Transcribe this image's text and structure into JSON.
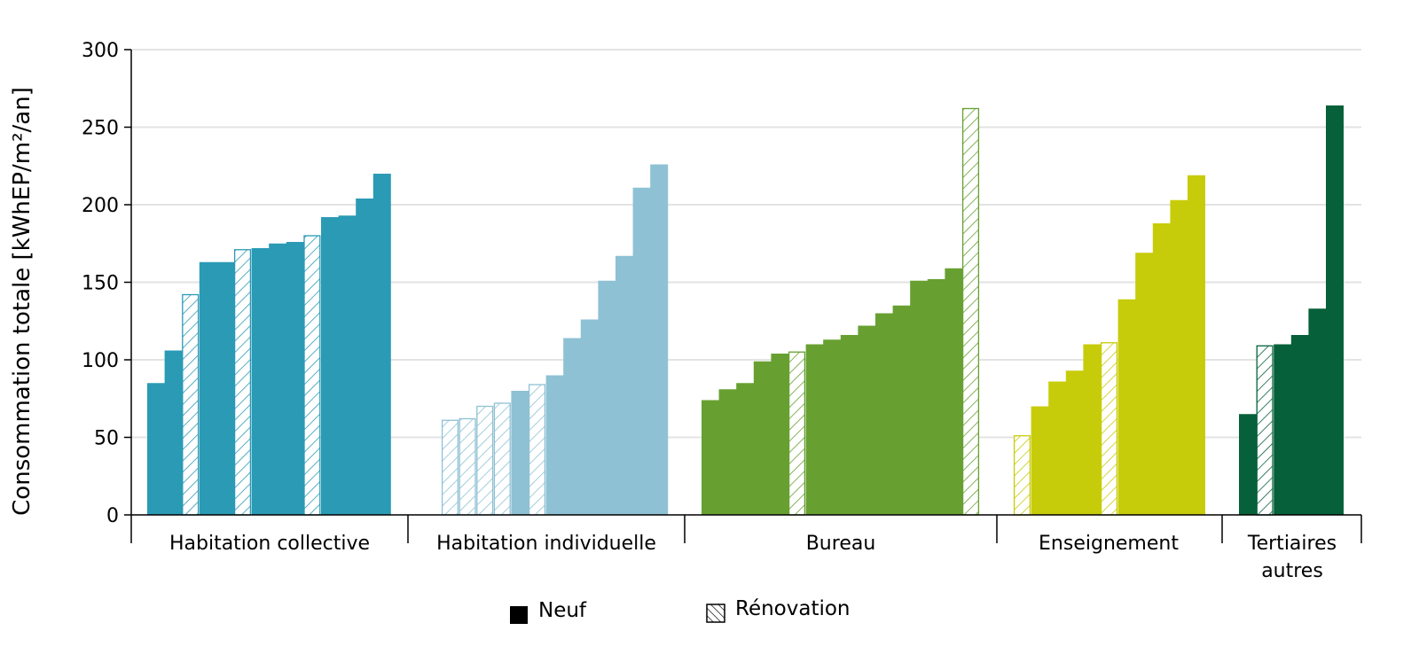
{
  "chart_data": {
    "type": "bar",
    "ylabel": "Consommation totale [kWhEP/m²/an]",
    "ylim": [
      0,
      300
    ],
    "yticks": [
      0,
      50,
      100,
      150,
      200,
      250,
      300
    ],
    "grid": true,
    "legend_position": "bottom",
    "legend": [
      {
        "label": "Neuf",
        "pattern": "solid"
      },
      {
        "label": "Rénovation",
        "pattern": "hatched"
      }
    ],
    "groups": [
      {
        "name": "Habitation collective",
        "color": "#2b9ab5",
        "bars": [
          {
            "value": 85,
            "type": "Neuf"
          },
          {
            "value": 106,
            "type": "Neuf"
          },
          {
            "value": 142,
            "type": "Rénovation"
          },
          {
            "value": 163,
            "type": "Neuf"
          },
          {
            "value": 163,
            "type": "Neuf"
          },
          {
            "value": 171,
            "type": "Rénovation"
          },
          {
            "value": 172,
            "type": "Neuf"
          },
          {
            "value": 175,
            "type": "Neuf"
          },
          {
            "value": 176,
            "type": "Neuf"
          },
          {
            "value": 180,
            "type": "Rénovation"
          },
          {
            "value": 192,
            "type": "Neuf"
          },
          {
            "value": 193,
            "type": "Neuf"
          },
          {
            "value": 204,
            "type": "Neuf"
          },
          {
            "value": 220,
            "type": "Neuf"
          }
        ]
      },
      {
        "name": "Habitation individuelle",
        "color": "#8ec1d4",
        "bars": [
          {
            "value": 61,
            "type": "Rénovation"
          },
          {
            "value": 62,
            "type": "Rénovation"
          },
          {
            "value": 70,
            "type": "Rénovation"
          },
          {
            "value": 72,
            "type": "Rénovation"
          },
          {
            "value": 80,
            "type": "Neuf"
          },
          {
            "value": 84,
            "type": "Rénovation"
          },
          {
            "value": 90,
            "type": "Neuf"
          },
          {
            "value": 114,
            "type": "Neuf"
          },
          {
            "value": 126,
            "type": "Neuf"
          },
          {
            "value": 151,
            "type": "Neuf"
          },
          {
            "value": 167,
            "type": "Neuf"
          },
          {
            "value": 211,
            "type": "Neuf"
          },
          {
            "value": 226,
            "type": "Neuf"
          }
        ]
      },
      {
        "name": "Bureau",
        "color": "#67a031",
        "bars": [
          {
            "value": 74,
            "type": "Neuf"
          },
          {
            "value": 81,
            "type": "Neuf"
          },
          {
            "value": 85,
            "type": "Neuf"
          },
          {
            "value": 99,
            "type": "Neuf"
          },
          {
            "value": 104,
            "type": "Neuf"
          },
          {
            "value": 105,
            "type": "Rénovation"
          },
          {
            "value": 110,
            "type": "Neuf"
          },
          {
            "value": 113,
            "type": "Neuf"
          },
          {
            "value": 116,
            "type": "Neuf"
          },
          {
            "value": 122,
            "type": "Neuf"
          },
          {
            "value": 130,
            "type": "Neuf"
          },
          {
            "value": 135,
            "type": "Neuf"
          },
          {
            "value": 151,
            "type": "Neuf"
          },
          {
            "value": 152,
            "type": "Neuf"
          },
          {
            "value": 159,
            "type": "Neuf"
          },
          {
            "value": 262,
            "type": "Rénovation"
          }
        ]
      },
      {
        "name": "Enseignement",
        "color": "#c7cc0a",
        "bars": [
          {
            "value": 51,
            "type": "Rénovation"
          },
          {
            "value": 70,
            "type": "Neuf"
          },
          {
            "value": 86,
            "type": "Neuf"
          },
          {
            "value": 93,
            "type": "Neuf"
          },
          {
            "value": 110,
            "type": "Neuf"
          },
          {
            "value": 111,
            "type": "Rénovation"
          },
          {
            "value": 139,
            "type": "Neuf"
          },
          {
            "value": 169,
            "type": "Neuf"
          },
          {
            "value": 188,
            "type": "Neuf"
          },
          {
            "value": 203,
            "type": "Neuf"
          },
          {
            "value": 219,
            "type": "Neuf"
          }
        ]
      },
      {
        "name": "Tertiaires autres",
        "color": "#06603a",
        "bars": [
          {
            "value": 65,
            "type": "Neuf"
          },
          {
            "value": 109,
            "type": "Rénovation"
          },
          {
            "value": 110,
            "type": "Neuf"
          },
          {
            "value": 116,
            "type": "Neuf"
          },
          {
            "value": 133,
            "type": "Neuf"
          },
          {
            "value": 264,
            "type": "Neuf"
          }
        ]
      }
    ]
  }
}
